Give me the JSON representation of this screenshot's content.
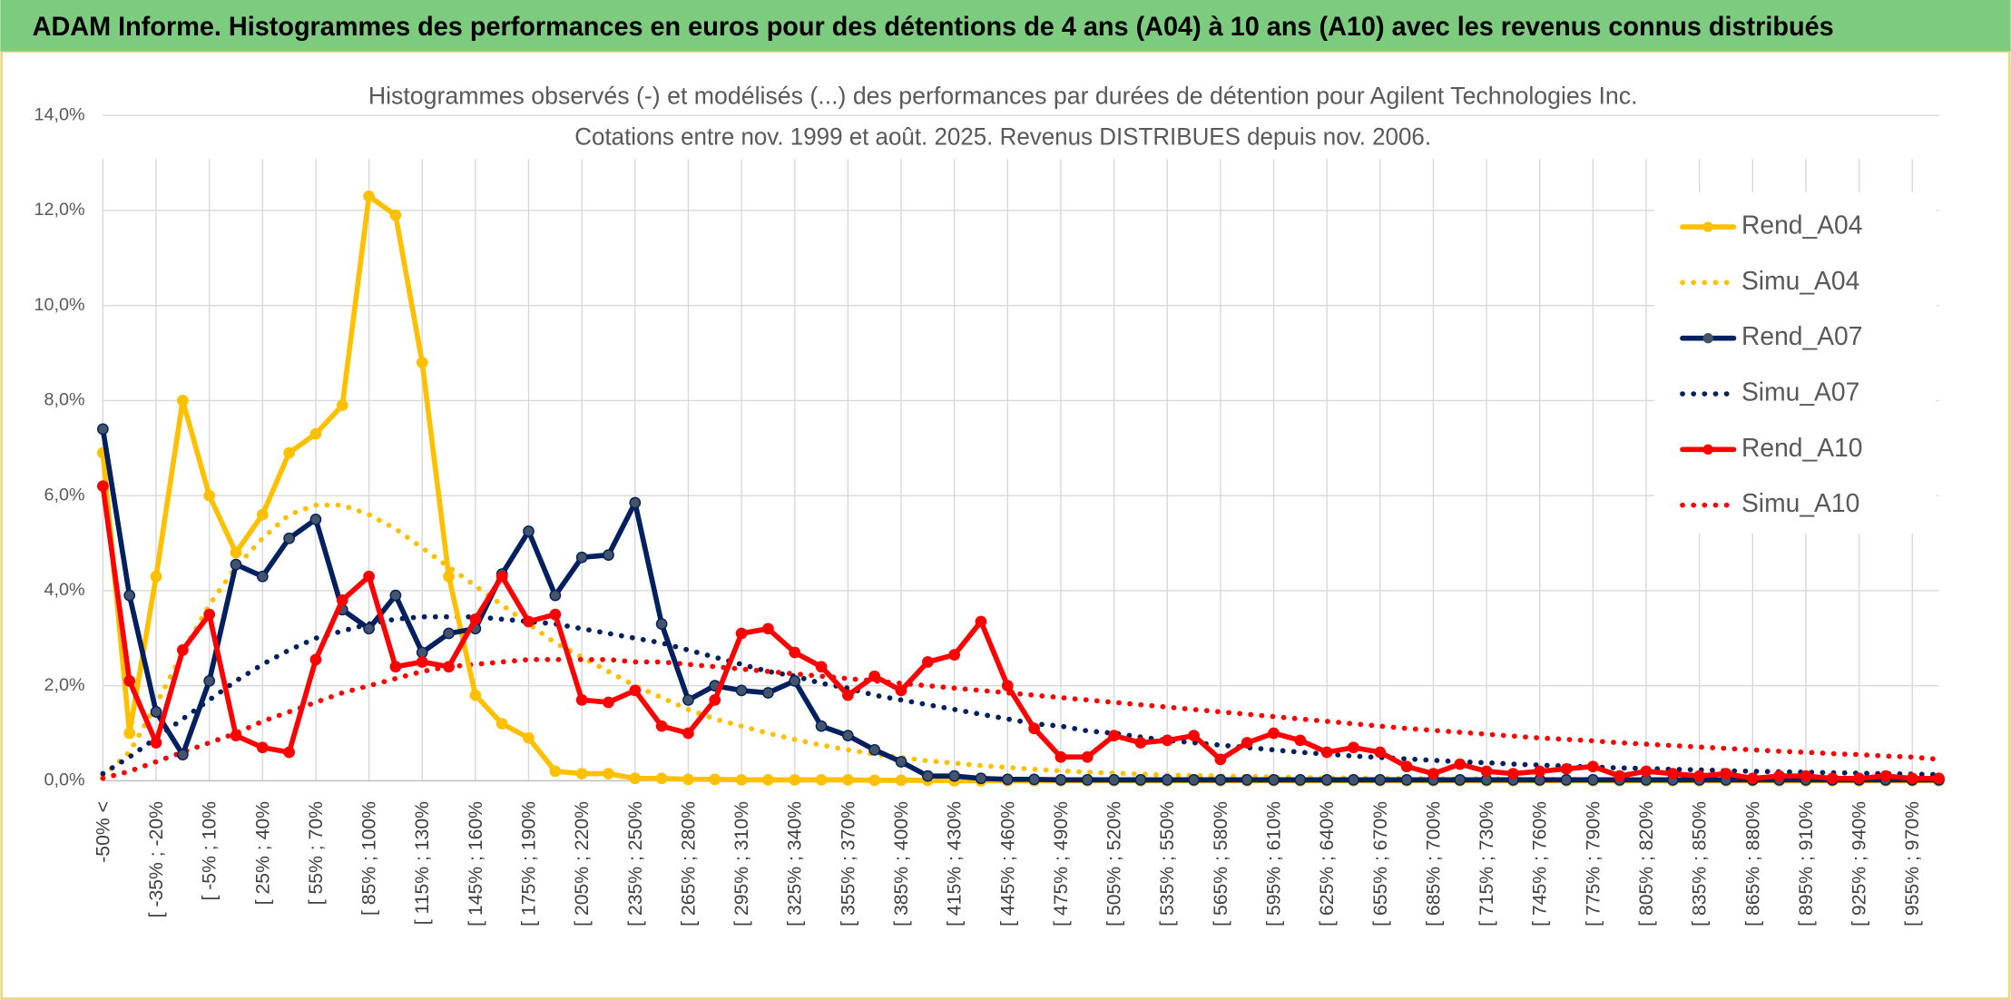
{
  "header": {
    "title": "ADAM Informe. Histogrammes des performances en euros pour des détentions de 4 ans (A04) à 10 ans (A10) avec les revenus connus distribués"
  },
  "chart_data": {
    "type": "line",
    "title": "Histogrammes observés (-) et modélisés (...) des performances par durées de détention pour Agilent Technologies Inc.",
    "subtitle": "Cotations entre nov. 1999 et août. 2025. Revenus DISTRIBUES depuis nov. 2006.",
    "categories": [
      "-50% <",
      null,
      "[ -35% ; -20%",
      null,
      "[ -5% ; 10%",
      null,
      "[ 25% ; 40%",
      null,
      "[ 55% ; 70%",
      null,
      "[ 85% ; 100%",
      null,
      "[ 115% ; 130%",
      null,
      "[ 145% ; 160%",
      null,
      "[ 175% ; 190%",
      null,
      "[ 205% ; 220%",
      null,
      "[ 235% ; 250%",
      null,
      "[ 265% ; 280%",
      null,
      "[ 295% ; 310%",
      null,
      "[ 325% ; 340%",
      null,
      "[ 355% ; 370%",
      null,
      "[ 385% ; 400%",
      null,
      "[ 415% ; 430%",
      null,
      "[ 445% ; 460%",
      null,
      "[ 475% ; 490%",
      null,
      "[ 505% ; 520%",
      null,
      "[ 535% ; 550%",
      null,
      "[ 565% ; 580%",
      null,
      "[ 595% ; 610%",
      null,
      "[ 625% ; 640%",
      null,
      "[ 655% ; 670%",
      null,
      "[ 685% ; 700%",
      null,
      "[ 715% ; 730%",
      null,
      "[ 745% ; 760%",
      null,
      "[ 775% ; 790%",
      null,
      "[ 805% ; 820%",
      null,
      "[ 835% ; 850%",
      null,
      "[ 865% ; 880%",
      null,
      "[ 895% ; 910%",
      null,
      "[ 925% ; 940%",
      null,
      "[ 955% ; 970%",
      null
    ],
    "series": [
      {
        "name": "Rend_A04",
        "color": "#FFC000",
        "dash": "solid",
        "markers": true,
        "values": [
          6.9,
          1.0,
          4.3,
          8.0,
          6.0,
          4.8,
          5.6,
          6.9,
          7.3,
          7.9,
          12.3,
          11.9,
          8.8,
          4.3,
          1.8,
          1.2,
          0.9,
          0.2,
          0.15,
          0.15,
          0.05,
          0.05,
          0.03,
          0.03,
          0.02,
          0.02,
          0.02,
          0.02,
          0.02,
          0.01,
          0.01,
          0.01,
          0,
          0,
          0,
          0,
          0,
          0,
          0,
          0,
          0,
          0,
          0,
          0,
          0,
          0,
          0,
          0,
          0,
          0,
          0,
          0,
          0,
          0,
          0,
          0,
          0,
          0,
          0,
          0,
          0,
          0,
          0,
          0,
          0,
          0,
          0,
          0,
          0,
          0
        ]
      },
      {
        "name": "Simu_A04",
        "color": "#FFC000",
        "dash": "dotted",
        "markers": false,
        "values": [
          0.1,
          0.6,
          1.6,
          2.7,
          3.7,
          4.5,
          5.1,
          5.6,
          5.8,
          5.8,
          5.6,
          5.3,
          4.9,
          4.5,
          4.1,
          3.7,
          3.3,
          2.9,
          2.6,
          2.3,
          2.0,
          1.75,
          1.5,
          1.3,
          1.15,
          1.0,
          0.87,
          0.75,
          0.65,
          0.56,
          0.49,
          0.42,
          0.37,
          0.32,
          0.28,
          0.24,
          0.21,
          0.18,
          0.16,
          0.14,
          0.12,
          0.11,
          0.1,
          0.09,
          0.08,
          0.07,
          0.06,
          0.06,
          0.05,
          0.05,
          0.04,
          0.04,
          0.04,
          0.03,
          0.03,
          0.03,
          0.03,
          0.02,
          0.02,
          0.02,
          0.02,
          0.02,
          0.02,
          0.02,
          0.01,
          0.01,
          0.01,
          0.01,
          0.01,
          0.01
        ]
      },
      {
        "name": "Rend_A07",
        "color": "#002060",
        "dash": "solid",
        "markers": true,
        "values": [
          7.4,
          3.9,
          1.45,
          0.55,
          2.1,
          4.55,
          4.3,
          5.1,
          5.5,
          3.6,
          3.2,
          3.9,
          2.7,
          3.1,
          3.2,
          4.35,
          5.25,
          3.9,
          4.7,
          4.75,
          5.85,
          3.3,
          1.7,
          2.0,
          1.9,
          1.85,
          2.1,
          1.15,
          0.95,
          0.65,
          0.4,
          0.1,
          0.1,
          0.05,
          0.03,
          0.03,
          0.02,
          0.02,
          0.02,
          0.02,
          0.02,
          0.02,
          0.02,
          0.02,
          0.02,
          0.02,
          0.02,
          0.02,
          0.02,
          0.02,
          0.02,
          0.02,
          0.02,
          0.02,
          0.02,
          0.02,
          0.02,
          0.02,
          0.02,
          0.02,
          0.02,
          0.02,
          0.02,
          0.02,
          0.02,
          0.02,
          0.02,
          0.02,
          0.02,
          0.02
        ]
      },
      {
        "name": "Simu_A07",
        "color": "#002060",
        "dash": "dotted",
        "markers": false,
        "values": [
          0.15,
          0.5,
          0.9,
          1.3,
          1.7,
          2.1,
          2.45,
          2.75,
          3.0,
          3.15,
          3.3,
          3.4,
          3.45,
          3.45,
          3.45,
          3.4,
          3.35,
          3.3,
          3.2,
          3.1,
          3.0,
          2.9,
          2.75,
          2.6,
          2.45,
          2.3,
          2.2,
          2.05,
          1.95,
          1.8,
          1.7,
          1.6,
          1.5,
          1.4,
          1.3,
          1.2,
          1.15,
          1.05,
          1.0,
          0.92,
          0.85,
          0.8,
          0.75,
          0.7,
          0.65,
          0.6,
          0.56,
          0.52,
          0.49,
          0.46,
          0.43,
          0.4,
          0.38,
          0.35,
          0.33,
          0.31,
          0.29,
          0.27,
          0.26,
          0.24,
          0.23,
          0.21,
          0.2,
          0.19,
          0.18,
          0.17,
          0.16,
          0.15,
          0.14,
          0.13
        ]
      },
      {
        "name": "Rend_A10",
        "color": "#FF0000",
        "dash": "solid",
        "markers": true,
        "values": [
          6.2,
          2.1,
          0.8,
          2.75,
          3.5,
          0.95,
          0.7,
          0.6,
          2.55,
          3.8,
          4.3,
          2.4,
          2.5,
          2.4,
          3.4,
          4.3,
          3.35,
          3.5,
          1.7,
          1.65,
          1.9,
          1.15,
          1.0,
          1.7,
          3.1,
          3.2,
          2.7,
          2.4,
          1.8,
          2.2,
          1.9,
          2.5,
          2.65,
          3.35,
          2.0,
          1.1,
          0.5,
          0.5,
          0.95,
          0.8,
          0.85,
          0.95,
          0.45,
          0.8,
          1.0,
          0.85,
          0.6,
          0.7,
          0.6,
          0.3,
          0.15,
          0.35,
          0.2,
          0.15,
          0.2,
          0.25,
          0.3,
          0.1,
          0.2,
          0.15,
          0.1,
          0.15,
          0.05,
          0.1,
          0.1,
          0.05,
          0.05,
          0.1,
          0.05,
          0.05
        ]
      },
      {
        "name": "Simu_A10",
        "color": "#FF0000",
        "dash": "dotted",
        "markers": false,
        "values": [
          0.05,
          0.2,
          0.4,
          0.6,
          0.8,
          1.0,
          1.25,
          1.45,
          1.65,
          1.85,
          2.0,
          2.15,
          2.3,
          2.4,
          2.45,
          2.5,
          2.55,
          2.55,
          2.55,
          2.55,
          2.5,
          2.5,
          2.45,
          2.4,
          2.35,
          2.3,
          2.25,
          2.2,
          2.15,
          2.1,
          2.05,
          2.0,
          1.95,
          1.9,
          1.85,
          1.8,
          1.75,
          1.7,
          1.65,
          1.6,
          1.55,
          1.5,
          1.45,
          1.4,
          1.35,
          1.3,
          1.25,
          1.2,
          1.15,
          1.1,
          1.06,
          1.02,
          0.98,
          0.94,
          0.9,
          0.87,
          0.84,
          0.8,
          0.77,
          0.74,
          0.71,
          0.68,
          0.65,
          0.62,
          0.6,
          0.57,
          0.55,
          0.52,
          0.5,
          0.45
        ]
      }
    ],
    "ylim": [
      0,
      14
    ],
    "yticks": [
      {
        "value": 0,
        "label": "0,0%"
      },
      {
        "value": 2,
        "label": "2,0%"
      },
      {
        "value": 4,
        "label": "4,0%"
      },
      {
        "value": 6,
        "label": "6,0%"
      },
      {
        "value": 8,
        "label": "8,0%"
      },
      {
        "value": 10,
        "label": "10,0%"
      },
      {
        "value": 12,
        "label": "12,0%"
      },
      {
        "value": 14,
        "label": "14,0%"
      }
    ],
    "grid": true,
    "legend": "right"
  }
}
